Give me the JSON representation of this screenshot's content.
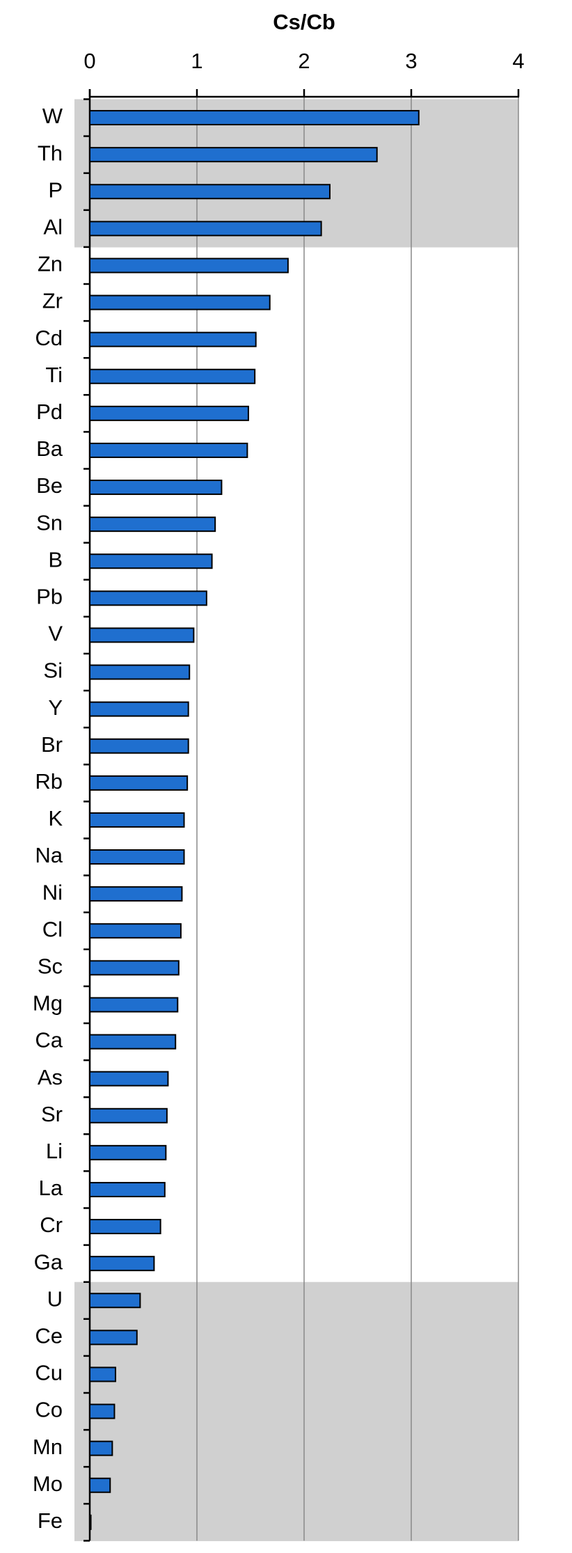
{
  "chart_data": {
    "type": "bar",
    "orientation": "horizontal",
    "title": "Cs/Cb",
    "categories": [
      "W",
      "Th",
      "P",
      "Al",
      "Zn",
      "Zr",
      "Cd",
      "Ti",
      "Pd",
      "Ba",
      "Be",
      "Sn",
      "B",
      "Pb",
      "V",
      "Si",
      "Y",
      "Br",
      "Rb",
      "K",
      "Na",
      "Ni",
      "Cl",
      "Sc",
      "Mg",
      "Ca",
      "As",
      "Sr",
      "Li",
      "La",
      "Cr",
      "Ga",
      "U",
      "Ce",
      "Cu",
      "Co",
      "Mn",
      "Mo",
      "Fe"
    ],
    "values": [
      3.07,
      2.68,
      2.24,
      2.16,
      1.85,
      1.68,
      1.55,
      1.54,
      1.48,
      1.47,
      1.23,
      1.17,
      1.14,
      1.09,
      0.97,
      0.93,
      0.92,
      0.92,
      0.91,
      0.88,
      0.88,
      0.86,
      0.85,
      0.83,
      0.82,
      0.8,
      0.73,
      0.72,
      0.71,
      0.7,
      0.66,
      0.6,
      0.47,
      0.44,
      0.24,
      0.23,
      0.21,
      0.19,
      0.01
    ],
    "color": "#1f6fcf",
    "xlim": [
      0,
      4
    ],
    "xticks": [
      0,
      1,
      2,
      3,
      4
    ],
    "grid": true,
    "highlight": {
      "color": "#d0d0d0",
      "categories": [
        "W",
        "Th",
        "P",
        "Al",
        "U",
        "Ce",
        "Cu",
        "Co",
        "Mn",
        "Mo",
        "Fe"
      ]
    }
  }
}
